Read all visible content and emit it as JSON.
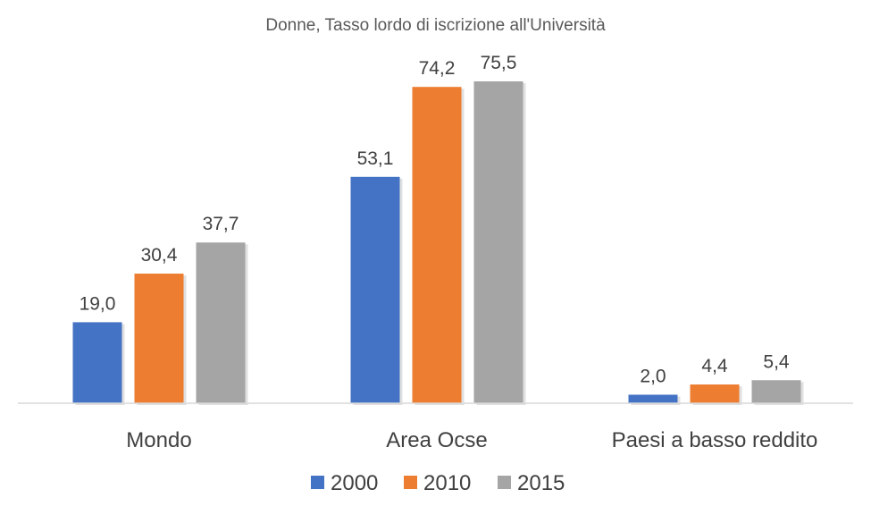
{
  "chart_data": {
    "type": "bar",
    "title": "Donne, Tasso lordo di iscrizione all'Università",
    "categories": [
      "Mondo",
      "Area Ocse",
      "Paesi a basso reddito"
    ],
    "series": [
      {
        "name": "2000",
        "color": "#4472C4",
        "values": [
          19.0,
          53.1,
          2.0
        ],
        "labels": [
          "19,0",
          "53,1",
          "2,0"
        ]
      },
      {
        "name": "2010",
        "color": "#ED7D31",
        "values": [
          30.4,
          74.2,
          4.4
        ],
        "labels": [
          "30,4",
          "74,2",
          "4,4"
        ]
      },
      {
        "name": "2015",
        "color": "#A5A5A5",
        "values": [
          37.7,
          75.5,
          5.4
        ],
        "labels": [
          "37,7",
          "75,5",
          "5,4"
        ]
      }
    ],
    "xlabel": "",
    "ylabel": "",
    "ylim": [
      0,
      80
    ],
    "grid": false,
    "legend": "bottom"
  }
}
